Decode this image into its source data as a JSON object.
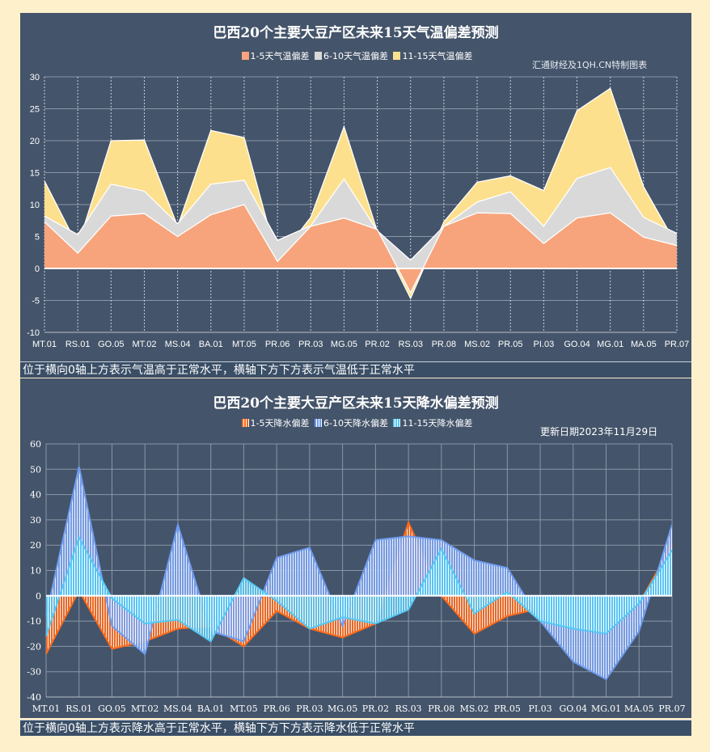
{
  "chart_data": [
    {
      "type": "area",
      "stacked": true,
      "title": "巴西20个主要大豆产区未来15天气温偏差预测",
      "source_note": "汇通财经及1QH.CN特制图表",
      "caption": "位于横向0轴上方表示气温高于正常水平，横轴下方下方表示气温低于正常水平",
      "legend_position": "top",
      "grid": true,
      "ylim": [
        -10,
        30
      ],
      "yticks": [
        30,
        25,
        20,
        15,
        10,
        5,
        0,
        -5,
        -10
      ],
      "categories": [
        "MT.01",
        "RS.01",
        "GO.05",
        "MT.02",
        "MS.04",
        "BA.01",
        "MT.05",
        "PR.06",
        "PR.03",
        "MG.05",
        "PR.02",
        "RS.03",
        "PR.08",
        "MS.02",
        "PR.05",
        "PI.03",
        "GO.04",
        "MG.01",
        "MA.05",
        "PR.07"
      ],
      "series": [
        {
          "name": "1-5天气温偏差",
          "color": "#f7a47c",
          "values": [
            7.3,
            2.4,
            8.2,
            8.6,
            5.0,
            8.4,
            10.0,
            1.1,
            6.6,
            7.9,
            6.1,
            -3.8,
            6.6,
            8.7,
            8.6,
            3.9,
            7.9,
            8.7,
            4.9,
            3.6
          ]
        },
        {
          "name": "6-10天气温偏差",
          "color": "#d9d9d9",
          "values": [
            0.9,
            2.9,
            5.0,
            3.5,
            2.0,
            4.8,
            3.8,
            3.3,
            0.1,
            6.1,
            -0.2,
            5.1,
            0.0,
            1.7,
            3.4,
            2.7,
            6.2,
            7.1,
            3.1,
            1.9
          ]
        },
        {
          "name": "11-15天气温偏差",
          "color": "#fde08e",
          "values": [
            5.5,
            -1.8,
            6.8,
            8.0,
            -0.4,
            8.4,
            6.7,
            -3.1,
            1.3,
            8.2,
            -0.1,
            -6.0,
            0.7,
            3.1,
            2.5,
            5.6,
            10.6,
            12.4,
            4.8,
            -1.9
          ]
        }
      ]
    },
    {
      "type": "area",
      "stacked": false,
      "title": "巴西20个主要大豆产区未来15天降水偏差预测",
      "update_note": "更新日期2023年11月29日",
      "caption": "位于横向0轴上方表示降水高于正常水平，横轴下方下方表示降水低于正常水平",
      "legend_position": "top",
      "grid": true,
      "ylim": [
        -40,
        60
      ],
      "yticks": [
        60,
        50,
        40,
        30,
        20,
        10,
        0,
        -10,
        -20,
        -30,
        -40
      ],
      "categories": [
        "MT.01",
        "RS.01",
        "GO.05",
        "MT.02",
        "MS.04",
        "BA.01",
        "MT.05",
        "PR.06",
        "PR.03",
        "MG.05",
        "PR.02",
        "RS.03",
        "PR.08",
        "MS.02",
        "PR.05",
        "PI.03",
        "GO.04",
        "MG.01",
        "MA.05",
        "PR.07"
      ],
      "series": [
        {
          "name": "1-5天降水偏差",
          "color": "#ff6a1a",
          "values": [
            -23,
            2,
            -21,
            -18,
            -13,
            -12,
            -20,
            -6,
            -13,
            -16.5,
            -11,
            29,
            0,
            -15,
            -8,
            -5,
            -12,
            -14,
            -3,
            20
          ]
        },
        {
          "name": "6-10天降水偏差",
          "color": "#6f9cf0",
          "values": [
            -8,
            51,
            -12,
            -23,
            28,
            -14,
            -18,
            15,
            19,
            -12,
            22,
            23.5,
            22,
            14,
            11,
            -10,
            -26,
            -33,
            -14,
            28
          ]
        },
        {
          "name": "11-15天降水偏差",
          "color": "#55c8f5",
          "values": [
            -16,
            23,
            -1,
            -11,
            -9.5,
            -18,
            7,
            -2,
            -13,
            -8.5,
            -11,
            -5.5,
            18.5,
            -7,
            1.5,
            -10,
            -13,
            -15,
            -3,
            18
          ]
        }
      ]
    }
  ]
}
